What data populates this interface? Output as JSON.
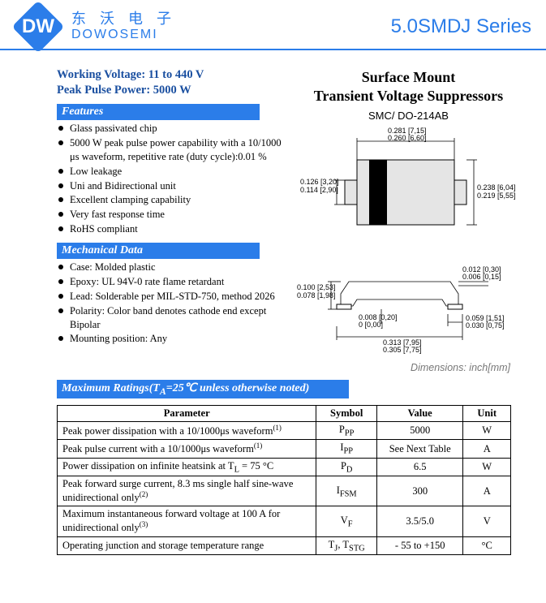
{
  "header": {
    "brand_cn": "东 沃 电 子",
    "brand_en": "DOWOSEMI",
    "logo_d": "D",
    "logo_w": "W",
    "series": "5.0SMDJ Series",
    "accent_color": "#2b7de9",
    "logo_bg": "#2b7de9",
    "logo_text_color": "#ffffff"
  },
  "specs": {
    "working_voltage": "Working Voltage: 11 to 440 V",
    "peak_pulse": "Peak Pulse Power: 5000 W",
    "text_color": "#1a4fa0"
  },
  "title": {
    "line1": "Surface Mount",
    "line2": "Transient Voltage Suppressors"
  },
  "features": {
    "heading": "Features",
    "items": [
      "Glass passivated chip",
      "5000 W peak pulse power capability with a 10/1000 μs waveform, repetitive rate (duty cycle):0.01 %",
      "Low leakage",
      "Uni and Bidirectional unit",
      "Excellent clamping capability",
      "Very fast response time",
      "RoHS compliant"
    ]
  },
  "mechanical": {
    "heading": "Mechanical Data",
    "items": [
      "Case: Molded plastic",
      "Epoxy: UL 94V-0 rate flame retardant",
      "Lead: Solderable per MIL-STD-750, method 2026",
      "Polarity: Color band denotes cathode end except Bipolar",
      "Mounting position: Any"
    ]
  },
  "package": {
    "label": "SMC/ DO-214AB",
    "dim_note": "Dimensions: inch[mm]",
    "top_view": {
      "body_fill": "#e5e5e5",
      "body_stroke": "#000000",
      "band_fill": "#000000",
      "lead_fill": "#e5e5e5",
      "w_top": "0.281 [7,15]",
      "w_bot": "0.260 [6,60]",
      "h_top": "0.126 [3,20]",
      "h_bot": "0.114 [2,90]",
      "r_top": "0.238 [6,04]",
      "r_bot": "0.219 [5,55]"
    },
    "side_view": {
      "d1_top": "0.012 [0,30]",
      "d1_bot": "0.006 [0,15]",
      "d2_top": "0.100 [2,53]",
      "d2_bot": "0.078 [1,98]",
      "d3_top": "0.008 [0,20]",
      "d3_bot": "0     [0,00]",
      "d4_top": "0.059 [1,51]",
      "d4_bot": "0.030 [0,75]",
      "d5_top": "0.313 [7,95]",
      "d5_bot": "0.305 [7,75]"
    }
  },
  "max_ratings": {
    "heading": "Maximum Ratings(T",
    "heading_sub": "A",
    "heading_tail": "=25℃ unless otherwise noted)",
    "columns": [
      "Parameter",
      "Symbol",
      "Value",
      "Unit"
    ],
    "col_widths": [
      "300px",
      "70px",
      "100px",
      "55px"
    ],
    "rows": [
      {
        "param": "Peak power dissipation with a 10/1000μs waveform",
        "sup": "(1)",
        "symbol_html": "P<sub>PP</sub>",
        "value": "5000",
        "unit": "W"
      },
      {
        "param": "Peak pulse current with a 10/1000μs waveform",
        "sup": "(1)",
        "symbol_html": "I<sub>PP</sub>",
        "value": "See Next Table",
        "unit": "A"
      },
      {
        "param": "Power dissipation on infinite heatsink at T<sub>L</sub> = 75 °C",
        "sup": "",
        "symbol_html": "P<sub>D</sub>",
        "value": "6.5",
        "unit": "W"
      },
      {
        "param": "Peak forward surge current, 8.3 ms single half sine-wave unidirectional only",
        "sup": "(2)",
        "symbol_html": "I<sub>FSM</sub>",
        "value": "300",
        "unit": "A"
      },
      {
        "param": "Maximum instantaneous forward voltage at 100 A for unidirectional only",
        "sup": "(3)",
        "symbol_html": "V<sub>F</sub>",
        "value": "3.5/5.0",
        "unit": "V"
      },
      {
        "param": "Operating junction and storage temperature range",
        "sup": "",
        "symbol_html": "T<sub>J</sub>, T<sub>STG</sub>",
        "value": "- 55 to +150",
        "unit": "°C"
      }
    ]
  }
}
